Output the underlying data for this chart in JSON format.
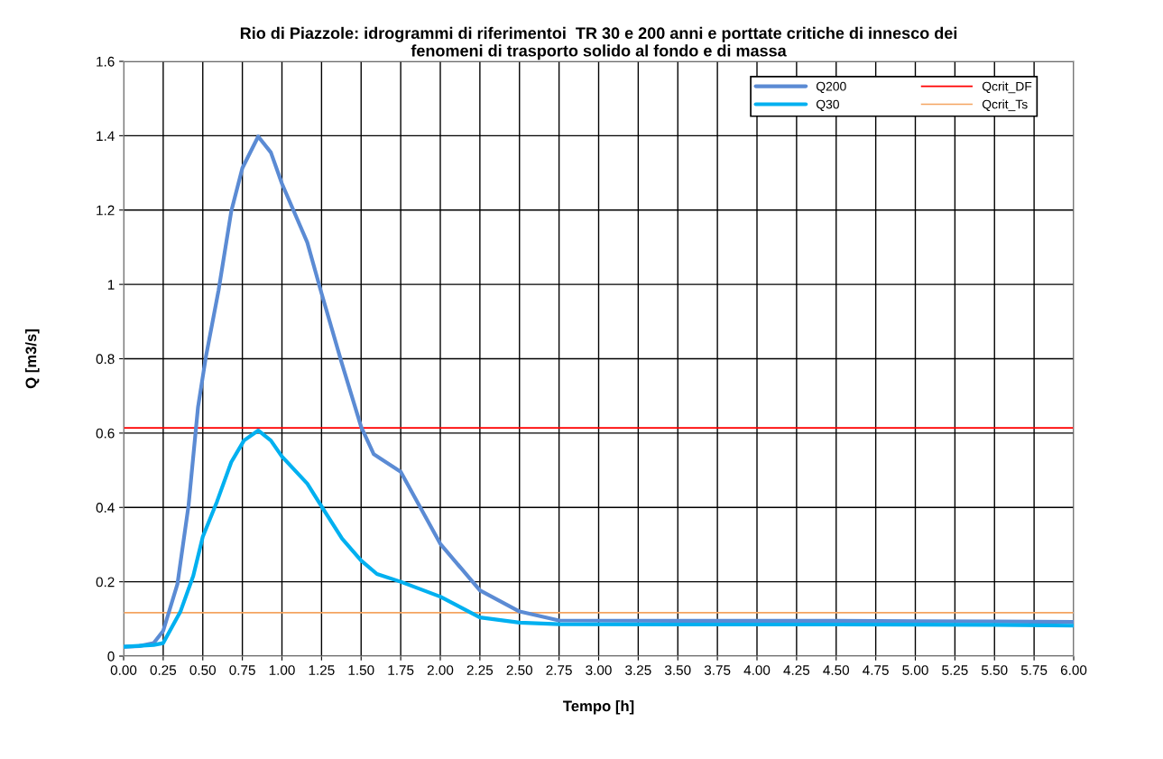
{
  "chart_data": {
    "type": "line",
    "title": "Rio di Piazzole: idrogrammi di riferimentoi  TR 30 e 200 anni e porttate critiche di innesco dei\nfenomeni di trasporto solido al fondo e di massa",
    "xlabel": "Tempo [h]",
    "ylabel": "Q [m3/s]",
    "xlim": [
      0,
      6
    ],
    "ylim": [
      0,
      1.6
    ],
    "xticks": [
      {
        "value": 0,
        "label": "0.00"
      },
      {
        "value": 0.25,
        "label": "0.25"
      },
      {
        "value": 0.5,
        "label": "0.50"
      },
      {
        "value": 0.75,
        "label": "0.75"
      },
      {
        "value": 1,
        "label": "1.00"
      },
      {
        "value": 1.25,
        "label": "1.25"
      },
      {
        "value": 1.5,
        "label": "1.50"
      },
      {
        "value": 1.75,
        "label": "1.75"
      },
      {
        "value": 2,
        "label": "2.00"
      },
      {
        "value": 2.25,
        "label": "2.25"
      },
      {
        "value": 2.5,
        "label": "2.50"
      },
      {
        "value": 2.75,
        "label": "2.75"
      },
      {
        "value": 3,
        "label": "3.00"
      },
      {
        "value": 3.25,
        "label": "3.25"
      },
      {
        "value": 3.5,
        "label": "3.50"
      },
      {
        "value": 3.75,
        "label": "3.75"
      },
      {
        "value": 4,
        "label": "4.00"
      },
      {
        "value": 4.25,
        "label": "4.25"
      },
      {
        "value": 4.5,
        "label": "4.50"
      },
      {
        "value": 4.75,
        "label": "4.75"
      },
      {
        "value": 5,
        "label": "5.00"
      },
      {
        "value": 5.25,
        "label": "5.25"
      },
      {
        "value": 5.5,
        "label": "5.50"
      },
      {
        "value": 5.75,
        "label": "5.75"
      },
      {
        "value": 6,
        "label": "6.00"
      }
    ],
    "yticks": [
      0,
      0.2,
      0.4,
      0.6,
      0.8,
      1,
      1.2,
      1.4,
      1.6
    ],
    "grid": true,
    "legend": "top right",
    "marker": "none",
    "line_style": "solid",
    "series": [
      {
        "name": "Q200",
        "color": "#5b8bd4",
        "x": [
          0,
          0.1,
          0.19,
          0.25,
          0.34,
          0.41,
          0.47,
          0.52,
          0.6,
          0.68,
          0.75,
          0.85,
          0.93,
          1.0,
          1.16,
          1.25,
          1.38,
          1.5,
          1.58,
          1.75,
          2.0,
          2.25,
          2.5,
          2.75,
          3.5,
          4.5,
          5.5,
          6.0
        ],
        "values": [
          0.025,
          0.027,
          0.035,
          0.068,
          0.194,
          0.405,
          0.67,
          0.806,
          0.985,
          1.197,
          1.313,
          1.398,
          1.355,
          1.271,
          1.113,
          0.976,
          0.785,
          0.617,
          0.543,
          0.496,
          0.302,
          0.177,
          0.12,
          0.096,
          0.095,
          0.095,
          0.093,
          0.092
        ]
      },
      {
        "name": "Q30",
        "color": "#00b0f0",
        "x": [
          0,
          0.19,
          0.25,
          0.36,
          0.44,
          0.5,
          0.59,
          0.68,
          0.76,
          0.85,
          0.93,
          1.0,
          1.16,
          1.26,
          1.38,
          1.5,
          1.6,
          1.75,
          2.0,
          2.25,
          2.5,
          2.75,
          3.5,
          4.5,
          5.5,
          6.0
        ],
        "values": [
          0.025,
          0.03,
          0.035,
          0.121,
          0.216,
          0.321,
          0.416,
          0.522,
          0.58,
          0.607,
          0.58,
          0.537,
          0.464,
          0.396,
          0.316,
          0.257,
          0.221,
          0.2,
          0.16,
          0.104,
          0.09,
          0.086,
          0.085,
          0.085,
          0.084,
          0.082
        ]
      }
    ],
    "ref_lines": [
      {
        "axis": "y",
        "value": 0.614,
        "label": "Qcrit_DF",
        "color": "#ff0000"
      },
      {
        "axis": "y",
        "value": 0.117,
        "label": "Qcrit_Ts",
        "color": "#f4a460"
      }
    ]
  }
}
